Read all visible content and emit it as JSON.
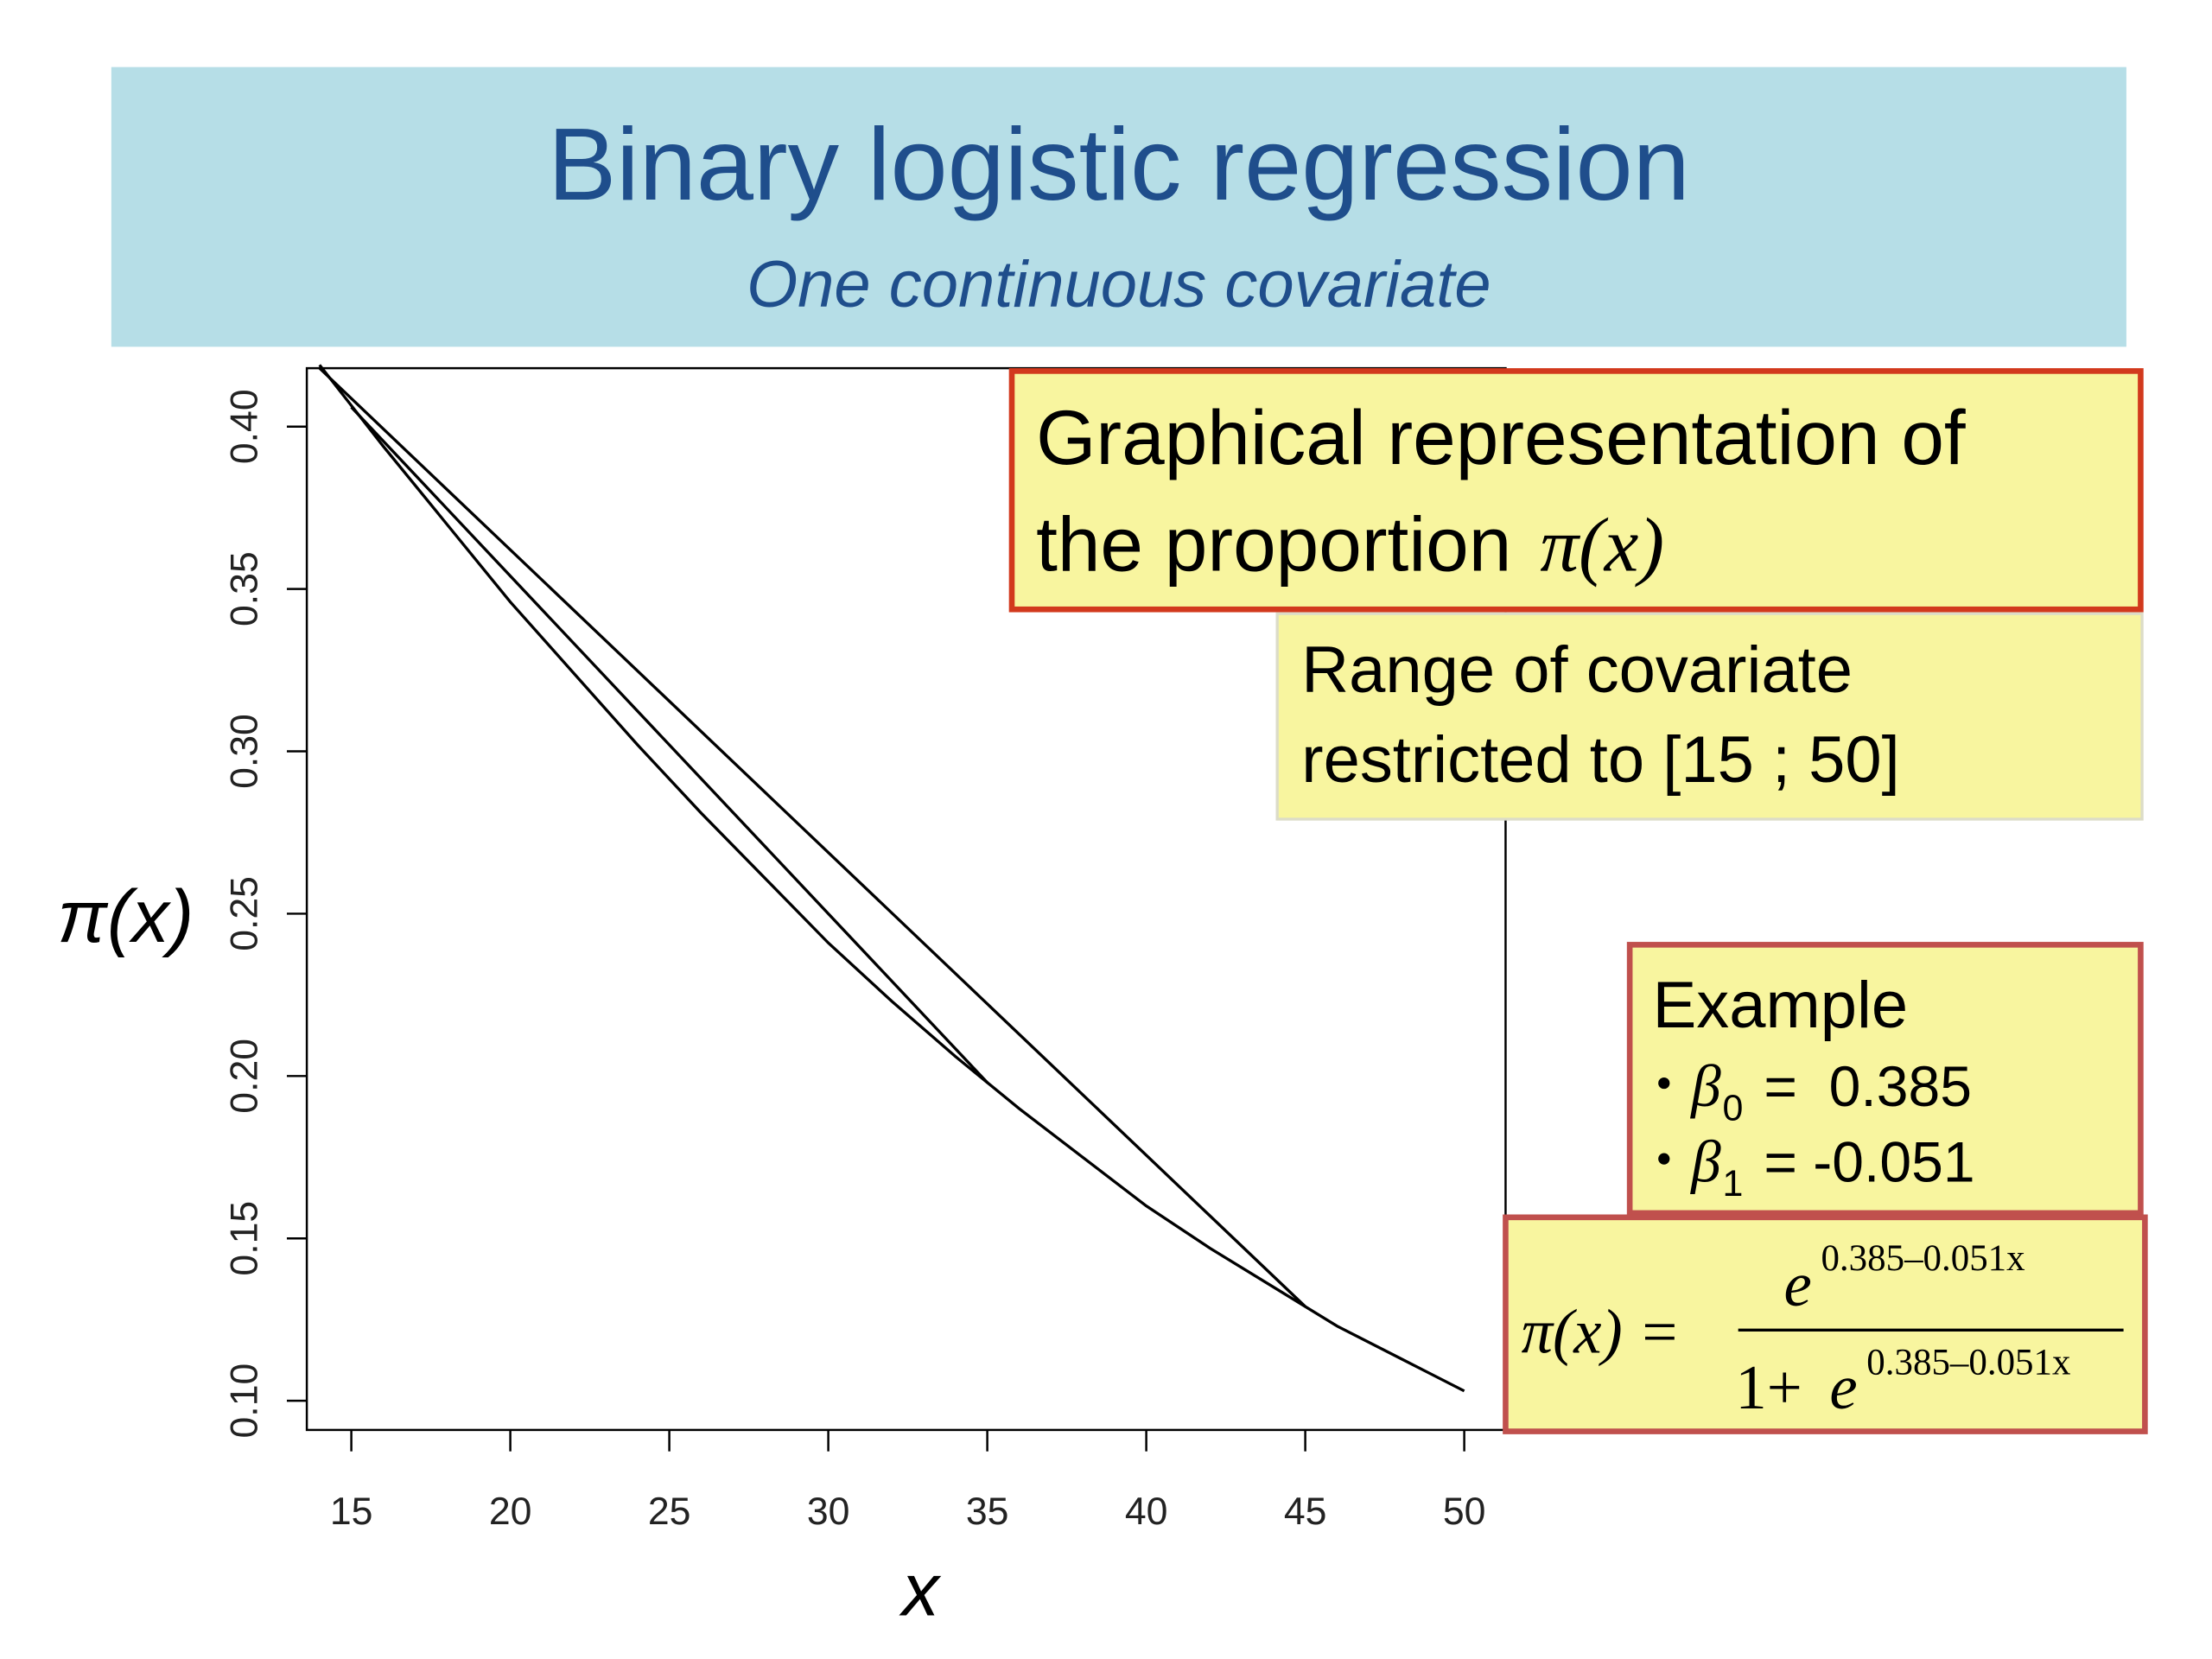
{
  "slide": {
    "title": "Binary logistic regression",
    "subtitle": "One continuous covariate"
  },
  "callouts": {
    "heading": {
      "line1": "Graphical representation of",
      "line2": "the proportion",
      "symbol": "π(x)"
    },
    "range": {
      "line1": "Range of covariate",
      "line2": "restricted to [15 ; 50]"
    },
    "example": {
      "heading": "Example",
      "items": [
        {
          "symbol": "β",
          "subscript": "0",
          "text": "=  0.385"
        },
        {
          "symbol": "β",
          "subscript": "1",
          "text": "= -0.051"
        }
      ]
    },
    "formula": {
      "lhs": "π(x) =",
      "numerator_base": "e",
      "numerator_exponent": "0.385–0.051x",
      "denominator_prefix": "1+",
      "denominator_base": "e",
      "denominator_exponent": "0.385–0.051x"
    }
  },
  "chart_data": {
    "type": "line",
    "x_label": "x",
    "y_label": "π(x)",
    "xlim": [
      13.6,
      51.3
    ],
    "ylim": [
      0.091,
      0.418
    ],
    "xticks": [
      15,
      20,
      25,
      30,
      35,
      40,
      45,
      50
    ],
    "yticks": [
      {
        "value": 0.1,
        "label": "0.10"
      },
      0.15,
      {
        "value": 0.2,
        "label": "0.20"
      },
      0.25,
      {
        "value": 0.3,
        "label": "0.30"
      },
      0.35,
      {
        "value": 0.4,
        "label": "0.40"
      }
    ],
    "series": [
      {
        "color": "#000000",
        "x": [
          14,
          16,
          18,
          20,
          22,
          24,
          26,
          28,
          30,
          32,
          34,
          36,
          38,
          40,
          42,
          44,
          46,
          48,
          50
        ],
        "values": [
          0.419,
          0.394,
          0.37,
          0.346,
          0.324,
          0.302,
          0.281,
          0.261,
          0.241,
          0.223,
          0.206,
          0.19,
          0.175,
          0.16,
          0.147,
          0.135,
          0.123,
          0.113,
          0.103
        ]
      },
      {
        "color": "#000000",
        "x": [
          15,
          35
        ],
        "values": [
          0.406,
          0.198
        ]
      },
      {
        "color": "#000000",
        "x": [
          14,
          45
        ],
        "values": [
          0.418,
          0.129
        ]
      }
    ]
  }
}
